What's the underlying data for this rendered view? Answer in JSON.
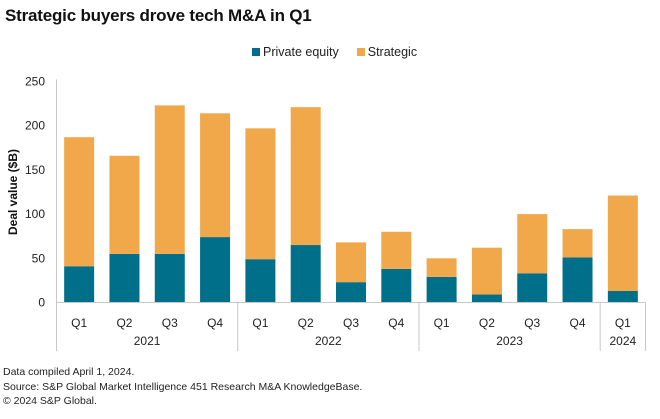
{
  "chart_data": {
    "type": "bar",
    "stacked": true,
    "title": "Strategic buyers drove tech M&A in Q1",
    "xlabel": "",
    "ylabel": "Deal value ($B)",
    "ylim": [
      0,
      250
    ],
    "yticks": [
      0,
      50,
      100,
      150,
      200,
      250
    ],
    "grid": false,
    "legend_position": "top-center",
    "categories": [
      "Q1",
      "Q2",
      "Q3",
      "Q4",
      "Q1",
      "Q2",
      "Q3",
      "Q4",
      "Q1",
      "Q2",
      "Q3",
      "Q4",
      "Q1"
    ],
    "groups": [
      {
        "label": "2021",
        "count": 4
      },
      {
        "label": "2022",
        "count": 4
      },
      {
        "label": "2023",
        "count": 4
      },
      {
        "label": "2024",
        "count": 1
      }
    ],
    "series": [
      {
        "name": "Private equity",
        "color": "#006f8a",
        "values": [
          41,
          55,
          55,
          74,
          49,
          65,
          23,
          38,
          29,
          9,
          33,
          51,
          13
        ]
      },
      {
        "name": "Strategic",
        "color": "#f0a84b",
        "values": [
          146,
          111,
          168,
          140,
          148,
          156,
          45,
          42,
          21,
          53,
          67,
          32,
          108
        ]
      }
    ]
  },
  "footnotes": [
    "Data compiled April 1, 2024.",
    "Source: S&P Global Market Intelligence 451 Research M&A KnowledgeBase.",
    "© 2024 S&P Global."
  ]
}
